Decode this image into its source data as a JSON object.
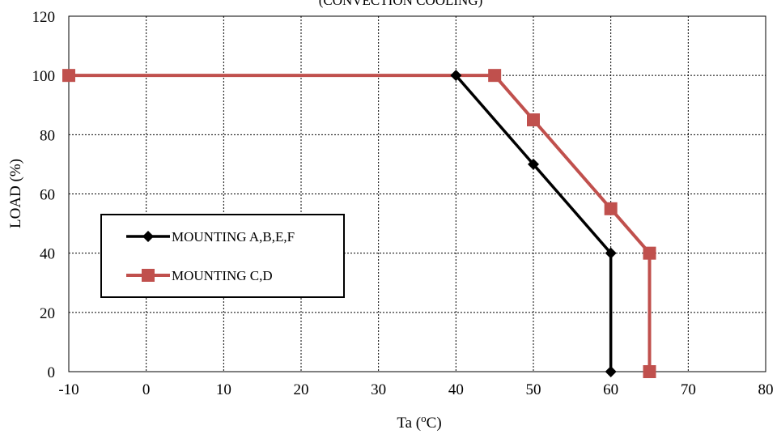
{
  "chart_data": {
    "type": "line",
    "title": "(CONVECTION COOLING)",
    "xlabel": "Ta (",
    "xlabel_sup": "o",
    "xlabel_unit": "C)",
    "ylabel": "LOAD (%)",
    "xlim": [
      -10,
      80
    ],
    "ylim": [
      0,
      120
    ],
    "x_ticks": [
      -10,
      0,
      10,
      20,
      30,
      40,
      50,
      60,
      70,
      80
    ],
    "y_ticks": [
      0,
      20,
      40,
      60,
      80,
      100,
      120
    ],
    "grid": true,
    "legend_position": "center-left",
    "series": [
      {
        "name": "MOUNTING A,B,E,F",
        "color": "#000000",
        "marker": "diamond",
        "points": [
          [
            40,
            100
          ],
          [
            50,
            70
          ],
          [
            60,
            40
          ],
          [
            60,
            0
          ]
        ]
      },
      {
        "name": "MOUNTING C,D",
        "color": "#c0504d",
        "marker": "square",
        "points": [
          [
            -10,
            100
          ],
          [
            45,
            100
          ],
          [
            50,
            85
          ],
          [
            60,
            55
          ],
          [
            65,
            40
          ],
          [
            65,
            0
          ]
        ]
      }
    ]
  }
}
